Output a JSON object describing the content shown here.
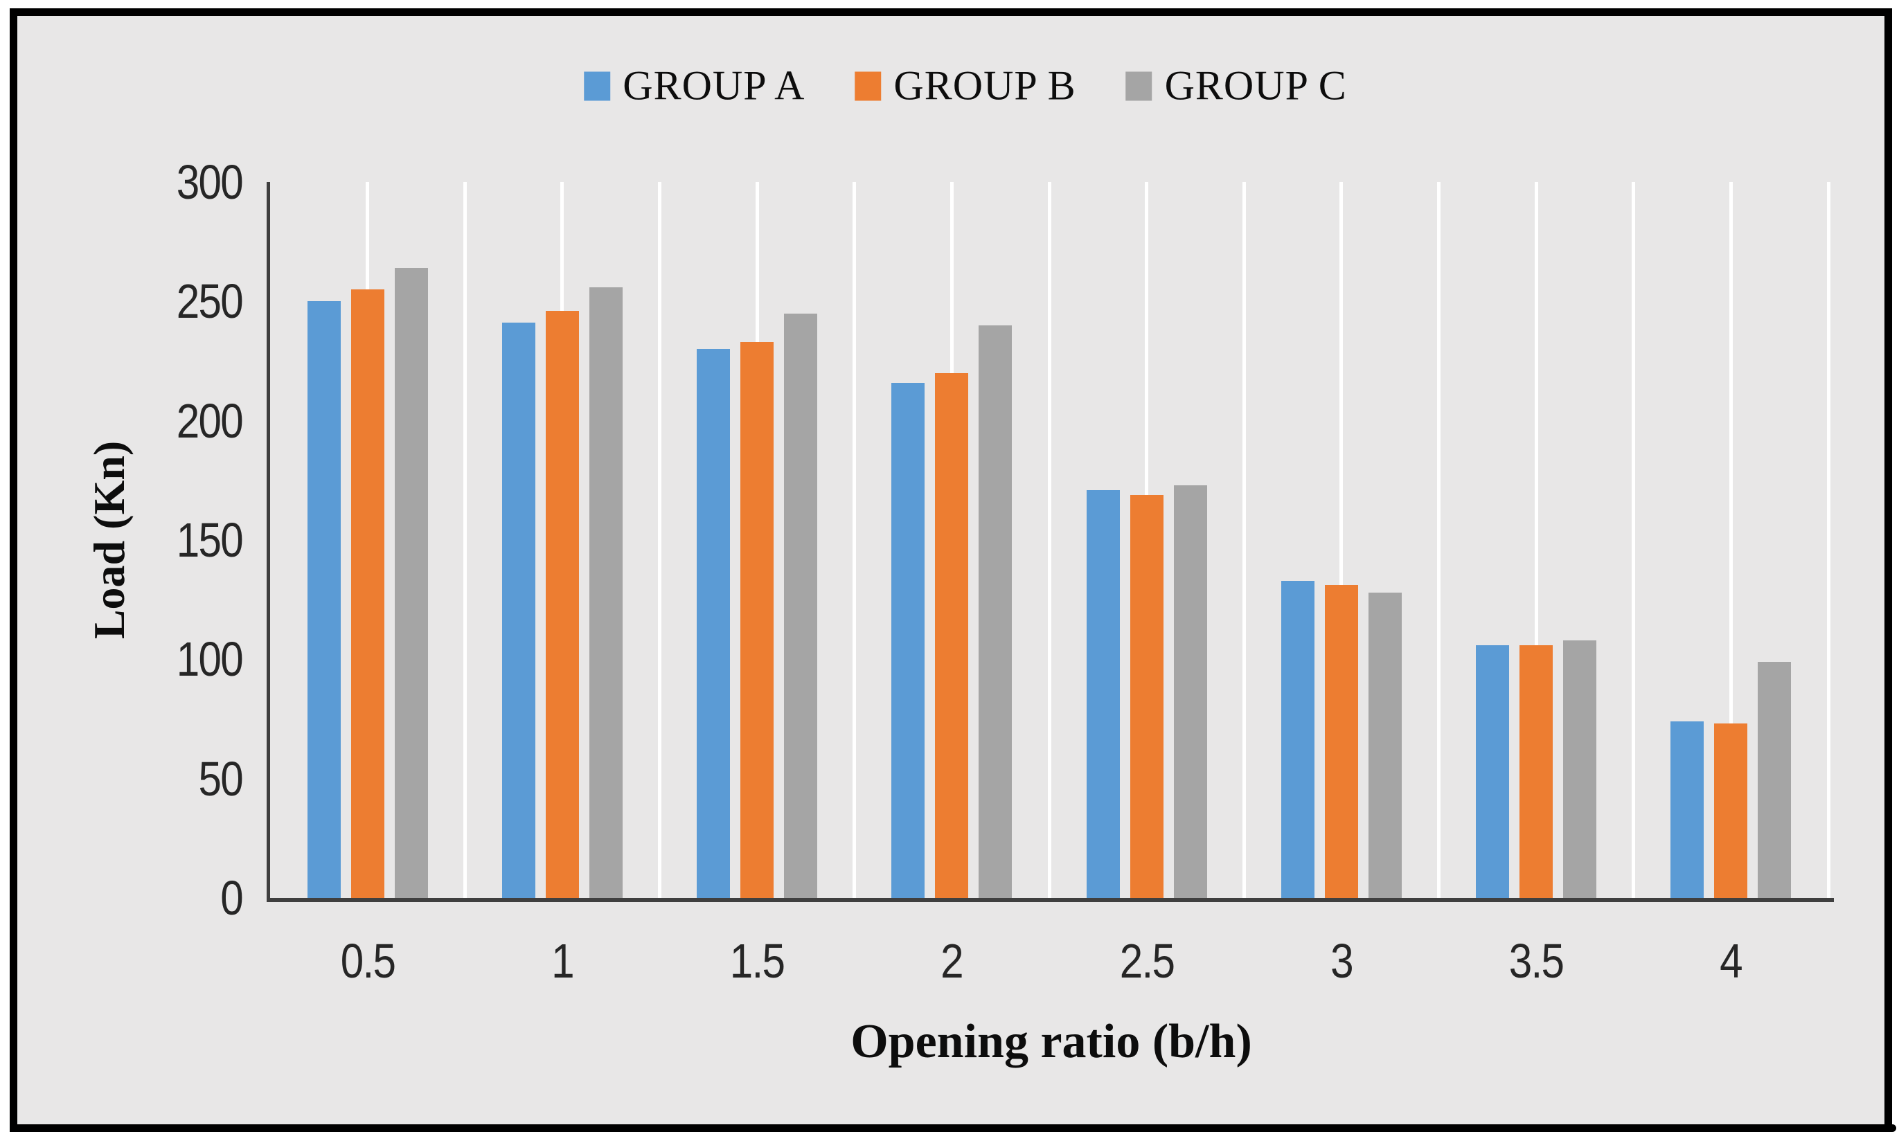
{
  "figure": {
    "stray_mark": "."
  },
  "chart_data": {
    "type": "bar",
    "title": "",
    "categories": [
      "0.5",
      "1",
      "1.5",
      "2",
      "2.5",
      "3",
      "3.5",
      "4"
    ],
    "series": [
      {
        "name": "GROUP A",
        "color": "#5B9BD5",
        "values": [
          250,
          241,
          230,
          216,
          171,
          133,
          106,
          74
        ]
      },
      {
        "name": "GROUP B",
        "color": "#ED7D31",
        "values": [
          255,
          246,
          233,
          220,
          169,
          131,
          106,
          73
        ]
      },
      {
        "name": "GROUP C",
        "color": "#A5A5A5",
        "values": [
          264,
          256,
          245,
          240,
          173,
          128,
          108,
          99
        ]
      }
    ],
    "xlabel": "Opening ratio (b/h)",
    "ylabel": "Load (Kn)",
    "ylim": [
      0,
      300
    ],
    "ytick_step": 50,
    "yticks": [
      "300",
      "250",
      "200",
      "150",
      "100",
      "50",
      "0"
    ],
    "legend_position": "top-center",
    "grid": "vertical-white-half-category",
    "background": "#e8e7e7",
    "gridline_color": "#ffffff",
    "axis_color": "#3f3f3f",
    "frame_border_color": "#000000",
    "tick_label_color": "#262626",
    "text_color": "#0d0d0d"
  }
}
